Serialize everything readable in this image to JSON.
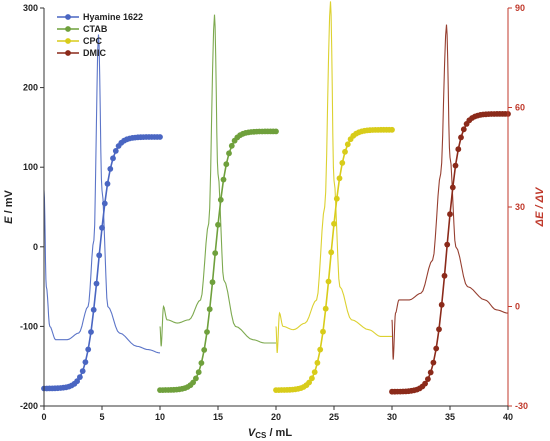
{
  "chart_data": {
    "type": "line",
    "x_axis": {
      "label_main": "V",
      "label_sub": "CS",
      "label_unit": " / mL",
      "range": [
        0,
        40
      ],
      "ticks": [
        "0",
        "5",
        "10",
        "15",
        "20",
        "25",
        "30",
        "35",
        "40"
      ]
    },
    "y_left": {
      "label_main": "E",
      "label_unit": " / mV",
      "range": [
        -200,
        300
      ],
      "ticks": [
        "-200",
        "-100",
        "0",
        "100",
        "200",
        "300"
      ]
    },
    "y_right": {
      "label": "ΔE / ΔV",
      "range": [
        -30,
        90
      ],
      "ticks": [
        "-30",
        "0",
        "30",
        "60",
        "90"
      ],
      "color": "#c0392b"
    },
    "legend_position": "top-left",
    "series": [
      {
        "name": "Hyamine 1622",
        "color": "#4a66c2",
        "x_start": 0,
        "x_end": 10,
        "eq": 4.7,
        "e_start": -178,
        "e_end": 138,
        "deriv": [
          [
            0.0,
            35
          ],
          [
            0.2,
            6
          ],
          [
            0.5,
            -6
          ],
          [
            1,
            -10
          ],
          [
            2,
            -10
          ],
          [
            3,
            -8
          ],
          [
            3.8,
            0
          ],
          [
            4.3,
            20
          ],
          [
            4.7,
            82
          ],
          [
            5.0,
            35
          ],
          [
            5.5,
            0
          ],
          [
            6.5,
            -8
          ],
          [
            8,
            -12
          ],
          [
            9,
            -13
          ],
          [
            10,
            -14
          ]
        ]
      },
      {
        "name": "CTAB",
        "color": "#6fa03c",
        "x_start": 10,
        "x_end": 20,
        "eq": 14.7,
        "e_start": -180,
        "e_end": 145,
        "deriv": [
          [
            10.0,
            -6
          ],
          [
            10.1,
            -12
          ],
          [
            10.3,
            0
          ],
          [
            10.6,
            -4
          ],
          [
            11.5,
            -5
          ],
          [
            12.5,
            -4
          ],
          [
            13.5,
            2
          ],
          [
            14.2,
            25
          ],
          [
            14.7,
            88
          ],
          [
            15.0,
            40
          ],
          [
            15.5,
            8
          ],
          [
            16.5,
            -6
          ],
          [
            18,
            -10
          ],
          [
            19,
            -11
          ],
          [
            20,
            -11
          ]
        ]
      },
      {
        "name": "CPC",
        "color": "#d8cc1a",
        "x_start": 20,
        "x_end": 30,
        "eq": 24.7,
        "e_start": -180,
        "e_end": 147,
        "deriv": [
          [
            20.0,
            -6
          ],
          [
            20.1,
            -14
          ],
          [
            20.3,
            -2
          ],
          [
            20.6,
            -6
          ],
          [
            21.5,
            -7
          ],
          [
            22.5,
            -5
          ],
          [
            23.5,
            2
          ],
          [
            24.2,
            30
          ],
          [
            24.7,
            92
          ],
          [
            25.0,
            38
          ],
          [
            25.5,
            6
          ],
          [
            26.5,
            -4
          ],
          [
            28,
            -7
          ],
          [
            29,
            -9
          ],
          [
            30,
            -9
          ]
        ]
      },
      {
        "name": "DMIC",
        "color": "#8b2a1a",
        "x_start": 30,
        "x_end": 40,
        "eq": 34.7,
        "e_start": -182,
        "e_end": 167,
        "deriv": [
          [
            30.0,
            -4
          ],
          [
            30.1,
            -16
          ],
          [
            30.3,
            -2
          ],
          [
            30.6,
            2
          ],
          [
            31.5,
            2
          ],
          [
            32.5,
            4
          ],
          [
            33.5,
            14
          ],
          [
            34.2,
            40
          ],
          [
            34.7,
            85
          ],
          [
            35.0,
            45
          ],
          [
            35.5,
            18
          ],
          [
            36.5,
            6
          ],
          [
            38,
            2
          ],
          [
            39,
            -1
          ],
          [
            40,
            -2
          ]
        ]
      }
    ]
  }
}
